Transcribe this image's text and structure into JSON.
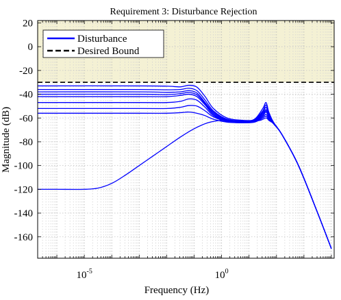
{
  "chart_data": {
    "type": "line",
    "title": "Requirement 3: Disturbance Rejection",
    "xlabel": "Frequency (Hz)",
    "ylabel": "Magnitude (dB)",
    "xscale": "log",
    "xlim_log10": [
      -6.7,
      4.1
    ],
    "ylim": [
      -178,
      22
    ],
    "grid": true,
    "legend_position": "top-left",
    "x_ticks": [
      {
        "log10": -5,
        "base": "10",
        "exp": "-5"
      },
      {
        "log10": 0,
        "base": "10",
        "exp": "0"
      }
    ],
    "y_ticks": [
      20,
      0,
      -20,
      -40,
      -60,
      -80,
      -100,
      -120,
      -140,
      -160
    ],
    "bound": {
      "name": "Desired Bound",
      "value_db": -30,
      "color": "#000000",
      "region_color": "#f4f1d4"
    },
    "series": [
      {
        "name": "Disturbance",
        "color": "#0000ff",
        "curves": [
          [
            [
              -6.7,
              -33
            ],
            [
              -3,
              -33
            ],
            [
              -2,
              -33.2
            ],
            [
              -1.5,
              -33.8
            ],
            [
              -1.2,
              -32.5
            ],
            [
              -0.9,
              -34
            ],
            [
              -0.6,
              -42
            ],
            [
              -0.3,
              -52
            ],
            [
              0.2,
              -60
            ],
            [
              0.8,
              -62
            ],
            [
              1.2,
              -61
            ],
            [
              1.5,
              -52
            ],
            [
              1.62,
              -47
            ],
            [
              1.72,
              -55
            ],
            [
              1.9,
              -64
            ],
            [
              2.2,
              -74
            ],
            [
              2.8,
              -100
            ],
            [
              3.5,
              -140
            ],
            [
              4.0,
              -170
            ]
          ],
          [
            [
              -6.7,
              -36
            ],
            [
              -3,
              -36
            ],
            [
              -2,
              -36.3
            ],
            [
              -1.5,
              -36
            ],
            [
              -1.2,
              -35
            ],
            [
              -0.9,
              -37
            ],
            [
              -0.6,
              -45
            ],
            [
              -0.3,
              -54
            ],
            [
              0.2,
              -61
            ],
            [
              0.8,
              -62.5
            ],
            [
              1.2,
              -61.5
            ],
            [
              1.5,
              -54
            ],
            [
              1.62,
              -49
            ],
            [
              1.72,
              -56
            ],
            [
              1.9,
              -64
            ],
            [
              2.2,
              -74
            ],
            [
              2.8,
              -100
            ],
            [
              3.5,
              -140
            ],
            [
              4.0,
              -170
            ]
          ],
          [
            [
              -6.7,
              -38
            ],
            [
              -3,
              -38
            ],
            [
              -2,
              -38.4
            ],
            [
              -1.5,
              -38
            ],
            [
              -1.2,
              -37
            ],
            [
              -0.9,
              -39
            ],
            [
              -0.6,
              -47
            ],
            [
              -0.3,
              -55
            ],
            [
              0.2,
              -61.5
            ],
            [
              0.8,
              -63
            ],
            [
              1.2,
              -62
            ],
            [
              1.5,
              -55
            ],
            [
              1.62,
              -51
            ],
            [
              1.72,
              -57
            ],
            [
              1.9,
              -64
            ],
            [
              2.2,
              -74
            ],
            [
              2.8,
              -100
            ],
            [
              3.5,
              -140
            ],
            [
              4.0,
              -170
            ]
          ],
          [
            [
              -6.7,
              -40
            ],
            [
              -3,
              -40
            ],
            [
              -2,
              -40.3
            ],
            [
              -1.5,
              -39.5
            ],
            [
              -1.2,
              -38.5
            ],
            [
              -0.9,
              -40.5
            ],
            [
              -0.6,
              -48
            ],
            [
              -0.3,
              -56
            ],
            [
              0.2,
              -62
            ],
            [
              0.8,
              -63.5
            ],
            [
              1.2,
              -62.5
            ],
            [
              1.5,
              -56
            ],
            [
              1.62,
              -53
            ],
            [
              1.72,
              -58
            ],
            [
              1.9,
              -64.5
            ],
            [
              2.2,
              -74
            ],
            [
              2.8,
              -100
            ],
            [
              3.5,
              -140
            ],
            [
              4.0,
              -170
            ]
          ],
          [
            [
              -6.7,
              -42
            ],
            [
              -3,
              -42
            ],
            [
              -2,
              -42
            ],
            [
              -1.5,
              -41
            ],
            [
              -1.2,
              -40
            ],
            [
              -0.9,
              -42
            ],
            [
              -0.6,
              -49
            ],
            [
              -0.3,
              -57
            ],
            [
              0.2,
              -62.5
            ],
            [
              0.8,
              -63.5
            ],
            [
              1.2,
              -62.5
            ],
            [
              1.5,
              -57
            ],
            [
              1.62,
              -54
            ],
            [
              1.72,
              -58.5
            ],
            [
              1.9,
              -64.5
            ],
            [
              2.2,
              -74
            ],
            [
              2.8,
              -100
            ],
            [
              3.5,
              -140
            ],
            [
              4.0,
              -170
            ]
          ],
          [
            [
              -6.7,
              -47
            ],
            [
              -3,
              -47
            ],
            [
              -2,
              -47
            ],
            [
              -1.5,
              -46
            ],
            [
              -1.2,
              -44
            ],
            [
              -0.9,
              -45
            ],
            [
              -0.6,
              -51
            ],
            [
              -0.3,
              -58
            ],
            [
              0.2,
              -62.5
            ],
            [
              0.8,
              -63.5
            ],
            [
              1.2,
              -62.5
            ],
            [
              1.5,
              -58
            ],
            [
              1.62,
              -55
            ],
            [
              1.72,
              -59
            ],
            [
              1.9,
              -65
            ],
            [
              2.2,
              -74
            ],
            [
              2.8,
              -100
            ],
            [
              3.5,
              -140
            ],
            [
              4.0,
              -170
            ]
          ],
          [
            [
              -6.7,
              -52
            ],
            [
              -3,
              -52
            ],
            [
              -2,
              -52
            ],
            [
              -1.5,
              -51
            ],
            [
              -1.2,
              -49.5
            ],
            [
              -0.9,
              -50
            ],
            [
              -0.6,
              -54
            ],
            [
              -0.3,
              -59
            ],
            [
              0.2,
              -63
            ],
            [
              0.8,
              -64
            ],
            [
              1.2,
              -63
            ],
            [
              1.5,
              -59
            ],
            [
              1.62,
              -57
            ],
            [
              1.72,
              -60
            ],
            [
              1.9,
              -65
            ],
            [
              2.2,
              -74
            ],
            [
              2.8,
              -100
            ],
            [
              3.5,
              -140
            ],
            [
              4.0,
              -170
            ]
          ],
          [
            [
              -6.7,
              -56
            ],
            [
              -3,
              -56
            ],
            [
              -2,
              -56
            ],
            [
              -1.5,
              -55.5
            ],
            [
              -1.2,
              -55
            ],
            [
              -0.9,
              -56
            ],
            [
              -0.6,
              -58
            ],
            [
              -0.3,
              -61
            ],
            [
              0.2,
              -63.5
            ],
            [
              0.8,
              -64
            ],
            [
              1.2,
              -63.5
            ],
            [
              1.5,
              -60
            ],
            [
              1.62,
              -58.5
            ],
            [
              1.72,
              -61
            ],
            [
              1.9,
              -65
            ],
            [
              2.2,
              -74
            ],
            [
              2.8,
              -100
            ],
            [
              3.5,
              -140
            ],
            [
              4.0,
              -170
            ]
          ],
          [
            [
              -6.7,
              -120
            ],
            [
              -6,
              -120
            ],
            [
              -5,
              -120
            ],
            [
              -4.5,
              -119
            ],
            [
              -4,
              -115
            ],
            [
              -3.5,
              -108
            ],
            [
              -3,
              -100
            ],
            [
              -2.5,
              -92
            ],
            [
              -2,
              -84
            ],
            [
              -1.5,
              -76
            ],
            [
              -1,
              -69
            ],
            [
              -0.5,
              -64
            ],
            [
              0,
              -62
            ],
            [
              0.5,
              -62.5
            ],
            [
              1,
              -63
            ],
            [
              1.4,
              -62
            ],
            [
              1.62,
              -60
            ],
            [
              1.72,
              -62
            ],
            [
              1.9,
              -65
            ],
            [
              2.2,
              -74
            ],
            [
              2.8,
              -100
            ],
            [
              3.5,
              -140
            ],
            [
              4.0,
              -170
            ]
          ]
        ]
      }
    ]
  }
}
